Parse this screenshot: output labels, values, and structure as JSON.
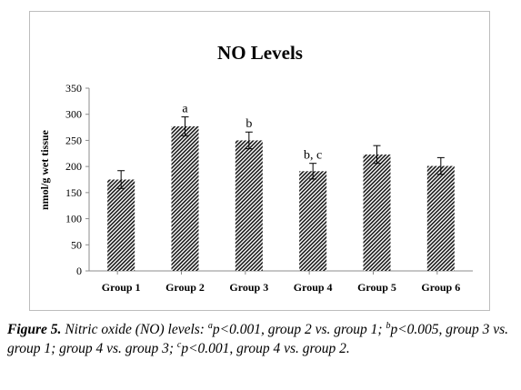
{
  "chart_data": {
    "type": "bar",
    "title": "NO Levels",
    "xlabel": "",
    "ylabel": "nmol/g wet tissue",
    "ylim": [
      0,
      350
    ],
    "yticks": [
      0,
      50,
      100,
      150,
      200,
      250,
      300,
      350
    ],
    "grid": false,
    "legend": "none",
    "categories": [
      "Group 1",
      "Group 2",
      "Group 3",
      "Group 4",
      "Group 5",
      "Group 6"
    ],
    "values": [
      175,
      277,
      250,
      191,
      223,
      201
    ],
    "errors": [
      17,
      18,
      16,
      15,
      17,
      16
    ],
    "annotations": [
      "",
      "a",
      "b",
      "b, c",
      "",
      ""
    ],
    "colors": {
      "bar_fill": "#1a1a1a",
      "hatch_bg": "#ffffff",
      "axis": "#8c8c8c"
    }
  },
  "caption": {
    "label": "Figure 5.",
    "parts": [
      {
        "text": " Nitric oxide (NO) levels: "
      },
      {
        "sup": "a"
      },
      {
        "text": "p<0.001, group 2 vs. group 1; "
      },
      {
        "sup": "b"
      },
      {
        "text": "p<0.005, group 3 vs. group 1; group 4 vs. group 3; "
      },
      {
        "sup": "c"
      },
      {
        "text": "p<0.001, group 4 vs. group 2."
      }
    ]
  }
}
